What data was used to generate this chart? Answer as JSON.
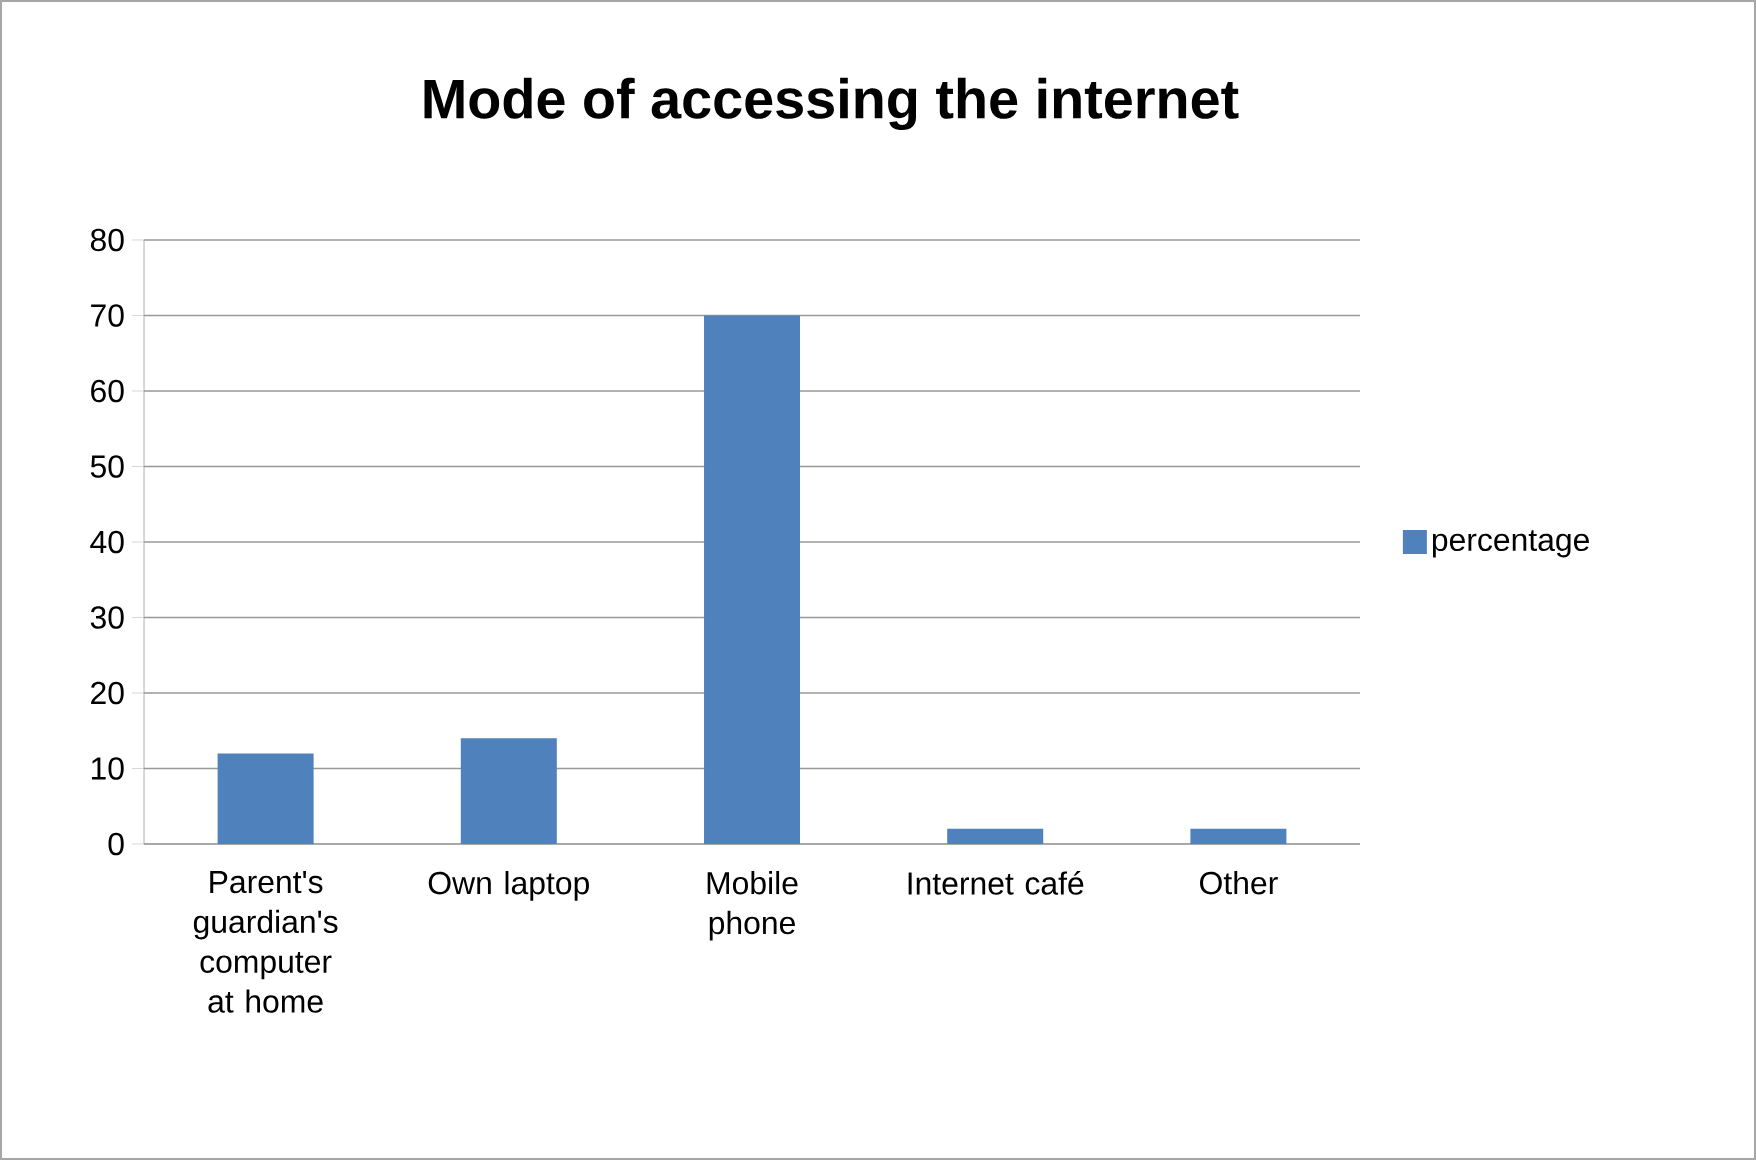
{
  "chart_data": {
    "type": "bar",
    "title": "Mode of accessing the internet",
    "categories": [
      "Parent's guardian's computer at home",
      "Own laptop",
      "Mobile phone",
      "Internet café",
      "Other"
    ],
    "series": [
      {
        "name": "percentage",
        "color": "#4f81bd",
        "values": [
          12,
          14,
          70,
          2,
          2
        ]
      }
    ],
    "ylim": [
      0,
      80
    ],
    "yticks": [
      0,
      10,
      20,
      30,
      40,
      50,
      60,
      70,
      80
    ],
    "grid": "y",
    "legend": "right"
  }
}
